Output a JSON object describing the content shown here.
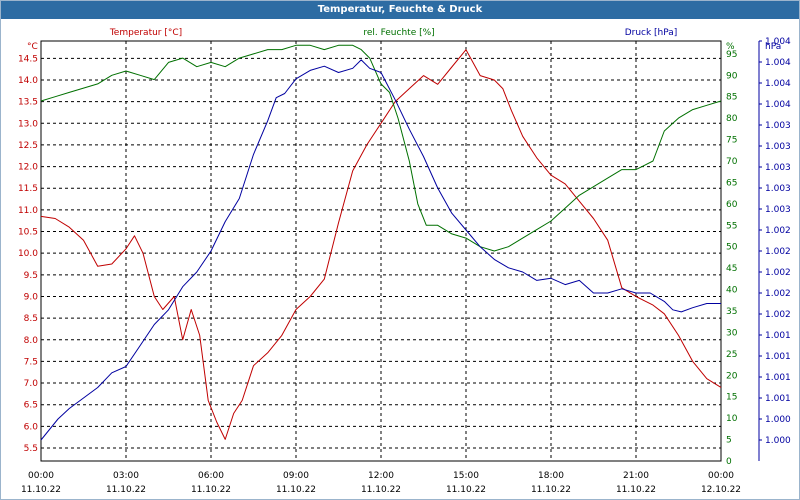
{
  "chart_data": {
    "type": "line",
    "title": "Temperatur, Feuchte & Druck",
    "x_ticks": [
      {
        "time": "00:00",
        "date": "11.10.22"
      },
      {
        "time": "03:00",
        "date": "11.10.22"
      },
      {
        "time": "06:00",
        "date": "11.10.22"
      },
      {
        "time": "09:00",
        "date": "11.10.22"
      },
      {
        "time": "12:00",
        "date": "11.10.22"
      },
      {
        "time": "15:00",
        "date": "11.10.22"
      },
      {
        "time": "18:00",
        "date": "11.10.22"
      },
      {
        "time": "21:00",
        "date": "11.10.22"
      },
      {
        "time": "00:00",
        "date": "12.10.22"
      }
    ],
    "x_range_hours": [
      0,
      24
    ],
    "grid": true,
    "axes": {
      "temperature": {
        "label": "Temperatur [°C]",
        "unit": "°C",
        "color": "#c00000",
        "range": [
          5.2,
          14.9
        ],
        "ticks": [
          "5.5",
          "6.0",
          "6.5",
          "7.0",
          "7.5",
          "8.0",
          "8.5",
          "9.0",
          "9.5",
          "10.0",
          "10.5",
          "11.0",
          "11.5",
          "12.0",
          "12.5",
          "13.0",
          "13.5",
          "14.0",
          "14.5"
        ]
      },
      "humidity": {
        "label": "rel. Feuchte [%]",
        "unit": "%",
        "color": "#007000",
        "range": [
          0,
          98
        ],
        "ticks": [
          "0",
          "5",
          "10",
          "15",
          "20",
          "25",
          "30",
          "35",
          "40",
          "45",
          "50",
          "55",
          "60",
          "65",
          "70",
          "75",
          "80",
          "85",
          "90",
          "95"
        ]
      },
      "pressure": {
        "label": "Druck [hPa]",
        "unit": "hPa",
        "color": "#0000a0",
        "range": [
          0,
          20
        ],
        "ticks": [
          "1.000",
          "1.000",
          "1.001",
          "1.001",
          "1.001",
          "1.001",
          "1.002",
          "1.002",
          "1.002",
          "1.002",
          "1.002",
          "1.003",
          "1.003",
          "1.003",
          "1.003",
          "1.003",
          "1.004",
          "1.004",
          "1.004",
          "1.004"
        ]
      }
    },
    "series": [
      {
        "name": "Temperatur [°C]",
        "axis": "temperature",
        "color": "#c00000",
        "x": [
          0,
          0.5,
          1,
          1.5,
          2,
          2.5,
          3,
          3.3,
          3.6,
          4,
          4.3,
          4.7,
          5,
          5.3,
          5.6,
          5.9,
          6.2,
          6.5,
          6.8,
          7.1,
          7.5,
          8,
          8.5,
          9,
          9.5,
          10,
          10.5,
          11,
          11.5,
          12,
          12.5,
          13,
          13.5,
          14,
          14.5,
          15,
          15.5,
          16,
          16.3,
          16.6,
          17,
          17.5,
          18,
          18.5,
          19,
          19.5,
          20,
          20.5,
          21,
          21.3,
          21.6,
          22,
          22.5,
          23,
          23.5,
          24
        ],
        "values": [
          10.85,
          10.8,
          10.6,
          10.3,
          9.7,
          9.75,
          10.1,
          10.4,
          10.0,
          9.0,
          8.7,
          9.0,
          8.0,
          8.7,
          8.1,
          6.6,
          6.1,
          5.7,
          6.3,
          6.6,
          7.4,
          7.7,
          8.1,
          8.7,
          9.0,
          9.4,
          10.7,
          11.9,
          12.5,
          13.0,
          13.5,
          13.8,
          14.1,
          13.9,
          14.3,
          14.7,
          14.1,
          14.0,
          13.8,
          13.3,
          12.7,
          12.2,
          11.8,
          11.6,
          11.2,
          10.8,
          10.3,
          9.2,
          9.0,
          8.9,
          8.8,
          8.6,
          8.1,
          7.5,
          7.1,
          6.9
        ]
      },
      {
        "name": "rel. Feuchte [%]",
        "axis": "humidity",
        "color": "#007000",
        "x": [
          0,
          0.5,
          1,
          1.5,
          2,
          2.5,
          3,
          3.5,
          4,
          4.5,
          5,
          5.5,
          6,
          6.5,
          7,
          7.5,
          8,
          8.5,
          9,
          9.5,
          10,
          10.5,
          11,
          11.3,
          11.6,
          12,
          12.3,
          12.6,
          13,
          13.3,
          13.6,
          14,
          14.5,
          15,
          15.5,
          16,
          16.5,
          17,
          17.5,
          18,
          18.5,
          19,
          19.5,
          20,
          20.5,
          21,
          21.3,
          21.6,
          22,
          22.5,
          23,
          23.5,
          24
        ],
        "values": [
          84,
          85,
          86,
          87,
          88,
          90,
          91,
          90,
          89,
          93,
          94,
          92,
          93,
          92,
          94,
          95,
          96,
          96,
          97,
          97,
          96,
          97,
          97,
          96,
          94,
          88,
          86,
          80,
          70,
          60,
          55,
          55,
          53,
          52,
          50,
          49,
          50,
          52,
          54,
          56,
          59,
          62,
          64,
          66,
          68,
          68,
          69,
          70,
          77,
          80,
          82,
          83,
          84
        ]
      },
      {
        "name": "Druck [hPa]",
        "axis": "pressure",
        "color": "#0000a0",
        "x": [
          0,
          0.3,
          0.6,
          1,
          1.5,
          2,
          2.5,
          3,
          3.5,
          4,
          4.5,
          5,
          5.5,
          6,
          6.5,
          7,
          7.5,
          8,
          8.3,
          8.6,
          9,
          9.5,
          10,
          10.5,
          11,
          11.3,
          11.6,
          12,
          12.5,
          13,
          13.5,
          14,
          14.5,
          15,
          15.5,
          16,
          16.5,
          17,
          17.5,
          18,
          18.5,
          19,
          19.5,
          20,
          20.5,
          21,
          21.5,
          22,
          22.3,
          22.6,
          23,
          23.5,
          24
        ],
        "values": [
          1.0,
          1.5,
          2.0,
          2.5,
          3.0,
          3.5,
          4.2,
          4.5,
          5.5,
          6.5,
          7.2,
          8.3,
          9.0,
          10.0,
          11.4,
          12.5,
          14.6,
          16.2,
          17.3,
          17.5,
          18.2,
          18.6,
          18.8,
          18.5,
          18.7,
          19.1,
          18.7,
          18.5,
          17.2,
          15.8,
          14.5,
          13.0,
          11.8,
          11.0,
          10.2,
          9.6,
          9.2,
          9.0,
          8.6,
          8.7,
          8.4,
          8.6,
          8.0,
          8.0,
          8.2,
          8.0,
          8.0,
          7.6,
          7.2,
          7.1,
          7.3,
          7.5,
          7.5
        ]
      }
    ]
  }
}
